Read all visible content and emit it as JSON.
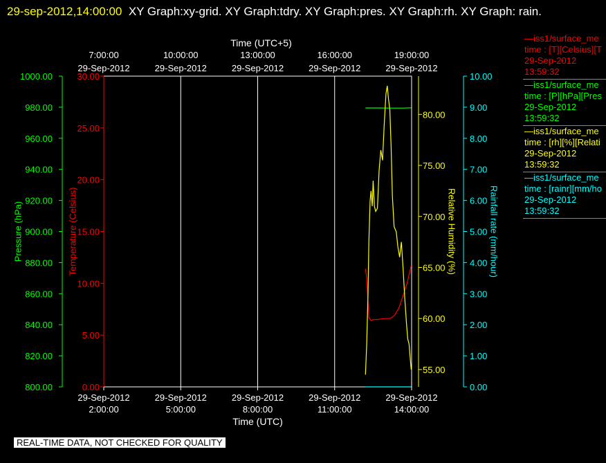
{
  "header": {
    "timestamp": "29-sep-2012,14:00:00",
    "title": "XY Graph:xy-grid.  XY Graph:tdry.  XY Graph:pres.  XY Graph:rh.  XY Graph: rain."
  },
  "colors": {
    "temperature": "#ff0000",
    "pressure": "#00ff00",
    "humidity": "#ffff00",
    "rain": "#00ffff",
    "grid": "#ffffff"
  },
  "legend": [
    {
      "line1": "iss1/surface_me",
      "line2": "time : [T][Celsius][T",
      "line3": "29-Sep-2012",
      "line4": "13:59:32",
      "color": "#ff0000"
    },
    {
      "line1": "iss1/surface_me",
      "line2": "time : [P][hPa][Pres",
      "line3": "29-Sep-2012",
      "line4": "13:59:32",
      "color": "#00ff00"
    },
    {
      "line1": "iss1/surface_me",
      "line2": "time : [rh][%][Relati",
      "line3": "29-Sep-2012",
      "line4": "13:59:32",
      "color": "#ffff00"
    },
    {
      "line1": "iss1/surface_me",
      "line2": "time : [rainr][mm/ho",
      "line3": "29-Sep-2012",
      "line4": "13:59:32",
      "color": "#00ffff"
    }
  ],
  "footer": "REAL-TIME DATA, NOT CHECKED FOR QUALITY",
  "chart_data": {
    "type": "line",
    "grid": true,
    "top_axis": {
      "label": "Time (UTC+5)",
      "ticks": [
        {
          "time": "7:00:00",
          "date": "29-Sep-2012"
        },
        {
          "time": "10:00:00",
          "date": "29-Sep-2012"
        },
        {
          "time": "13:00:00",
          "date": "29-Sep-2012"
        },
        {
          "time": "16:00:00",
          "date": "29-Sep-2012"
        },
        {
          "time": "19:00:00",
          "date": "29-Sep-2012"
        }
      ]
    },
    "bottom_axis": {
      "label": "Time (UTC)",
      "ticks": [
        {
          "time": "2:00:00",
          "date": "29-Sep-2012"
        },
        {
          "time": "5:00:00",
          "date": "29-Sep-2012"
        },
        {
          "time": "8:00:00",
          "date": "29-Sep-2012"
        },
        {
          "time": "11:00:00",
          "date": "29-Sep-2012"
        },
        {
          "time": "14:00:00",
          "date": "29-Sep-2012"
        }
      ]
    },
    "xlim": [
      "2012-09-29T02:00:00",
      "2012-09-29T14:00:00"
    ],
    "y_axes": {
      "pressure": {
        "label": "Pressure (hPa)",
        "lim": [
          800,
          1000
        ],
        "ticks": [
          "800.00",
          "820.00",
          "840.00",
          "860.00",
          "880.00",
          "900.00",
          "920.00",
          "940.00",
          "960.00",
          "980.00",
          "1000.00"
        ]
      },
      "temperature": {
        "label": "Temperature (Celsius)",
        "lim": [
          0,
          30
        ],
        "ticks": [
          "0.00",
          "5.00",
          "10.00",
          "15.00",
          "20.00",
          "25.00",
          "30.00"
        ]
      },
      "humidity": {
        "label": "Relative Humidity (%)",
        "lim": [
          53.3,
          83.75
        ],
        "ticks": [
          "55.00",
          "60.00",
          "65.00",
          "70.00",
          "75.00",
          "80.00"
        ]
      },
      "rain": {
        "label": "Rainfall rate (mm/hour)",
        "lim": [
          0,
          10
        ],
        "ticks": [
          "0.00",
          "1.00",
          "2.00",
          "3.00",
          "4.00",
          "5.00",
          "6.00",
          "7.00",
          "8.00",
          "9.00",
          "10.00"
        ]
      }
    },
    "series": [
      {
        "key": "temperature",
        "axis": "temperature",
        "x": [
          "2012-09-29T12:12:00",
          "2012-09-29T12:15:00",
          "2012-09-29T12:20:00",
          "2012-09-29T12:25:00",
          "2012-09-29T12:30:00",
          "2012-09-29T12:40:00",
          "2012-09-29T12:55:00",
          "2012-09-29T13:10:00",
          "2012-09-29T13:20:00",
          "2012-09-29T13:30:00",
          "2012-09-29T13:40:00",
          "2012-09-29T13:50:00",
          "2012-09-29T13:59:00"
        ],
        "values": [
          11.4,
          10.5,
          6.7,
          6.4,
          6.5,
          6.5,
          6.6,
          6.6,
          6.9,
          7.6,
          8.8,
          10.1,
          11.7
        ]
      },
      {
        "key": "pressure",
        "axis": "pressure",
        "x": [
          "2012-09-29T12:12:00",
          "2012-09-29T12:40:00",
          "2012-09-29T13:10:00",
          "2012-09-29T13:40:00",
          "2012-09-29T13:59:00"
        ],
        "values": [
          979.5,
          979.5,
          979.4,
          979.4,
          979.6
        ]
      },
      {
        "key": "humidity",
        "axis": "humidity",
        "x": [
          "2012-09-29T12:12:00",
          "2012-09-29T12:15:00",
          "2012-09-29T12:18:00",
          "2012-09-29T12:20:00",
          "2012-09-29T12:23:00",
          "2012-09-29T12:25:00",
          "2012-09-29T12:28:00",
          "2012-09-29T12:30:00",
          "2012-09-29T12:33:00",
          "2012-09-29T12:36:00",
          "2012-09-29T12:40:00",
          "2012-09-29T12:44:00",
          "2012-09-29T12:48:00",
          "2012-09-29T12:52:00",
          "2012-09-29T12:56:00",
          "2012-09-29T13:00:00",
          "2012-09-29T13:03:00",
          "2012-09-29T13:06:00",
          "2012-09-29T13:09:00",
          "2012-09-29T13:12:00",
          "2012-09-29T13:15:00",
          "2012-09-29T13:19:00",
          "2012-09-29T13:24:00",
          "2012-09-29T13:28:00",
          "2012-09-29T13:32:00",
          "2012-09-29T13:36:00",
          "2012-09-29T13:40:00",
          "2012-09-29T13:44:00",
          "2012-09-29T13:48:00",
          "2012-09-29T13:51:00",
          "2012-09-29T13:54:00",
          "2012-09-29T13:57:00",
          "2012-09-29T13:59:00"
        ],
        "values": [
          54.5,
          57.5,
          62.5,
          67.5,
          71.5,
          72.5,
          71.0,
          73.5,
          71.0,
          70.5,
          70.8,
          74.5,
          76.5,
          75.5,
          79.0,
          82.0,
          82.8,
          81.5,
          80.5,
          77.0,
          72.0,
          69.0,
          68.5,
          67.0,
          66.0,
          67.5,
          65.0,
          62.0,
          59.5,
          58.0,
          57.5,
          56.0,
          55.0
        ]
      },
      {
        "key": "rain",
        "axis": "rain",
        "x": [
          "2012-09-29T12:12:00",
          "2012-09-29T13:59:00"
        ],
        "values": [
          0.0,
          0.0
        ]
      }
    ]
  }
}
